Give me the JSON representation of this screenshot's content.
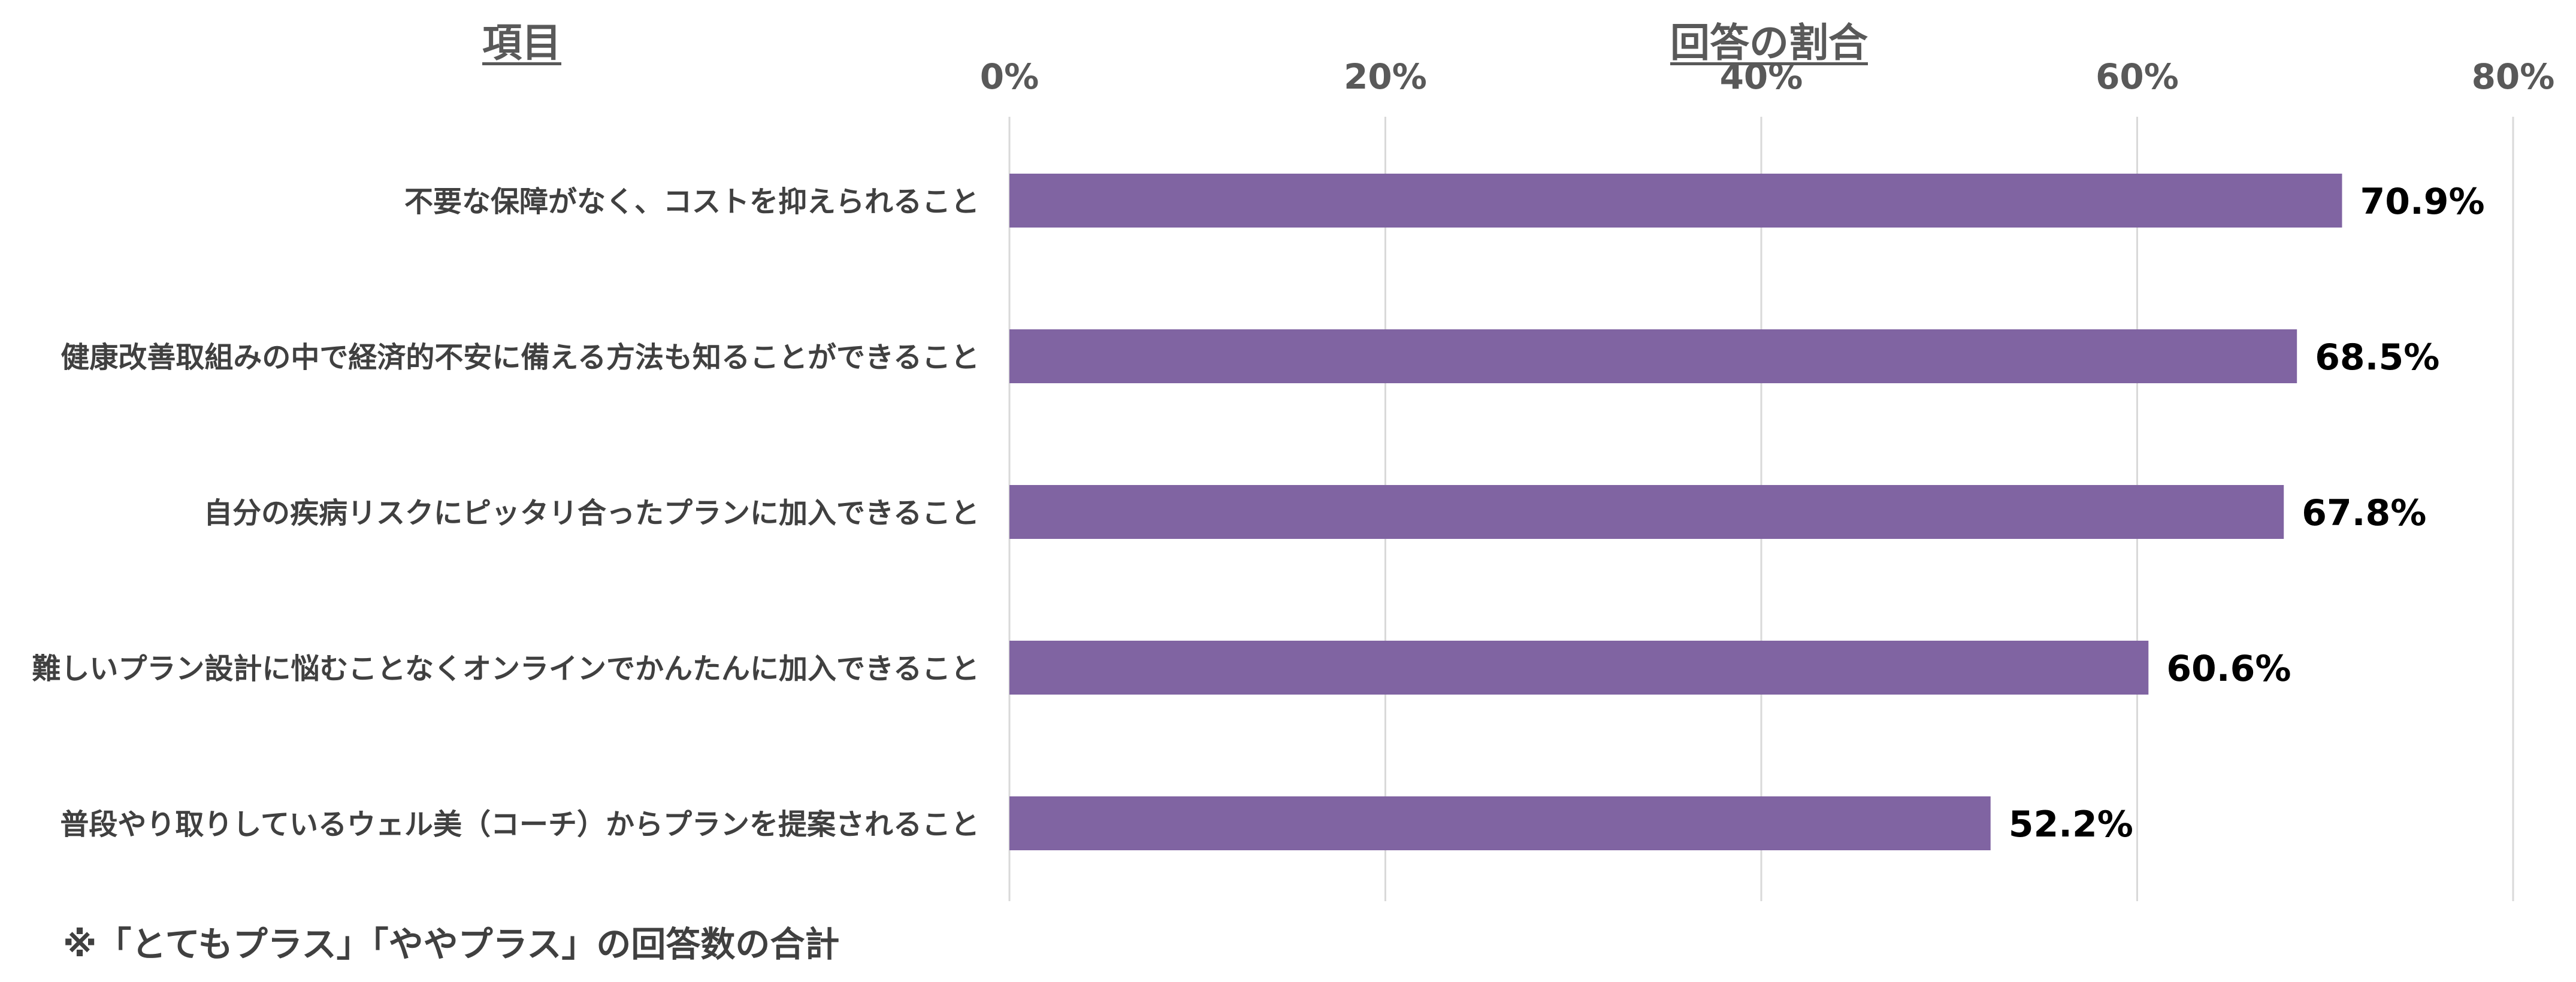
{
  "headers": {
    "item": "項目",
    "ratio": "回答の割合"
  },
  "footnote": "※「とてもプラス」「ややプラス」の回答数の合計",
  "colors": {
    "bar": "#8064A2",
    "grid": "#D9D9D9",
    "axis_text": "#595959",
    "category_text": "#404040",
    "value_text": "#000000"
  },
  "chart_data": {
    "type": "bar",
    "orientation": "horizontal",
    "categories": [
      "不要な保障がなく、コストを抑えられること",
      "健康改善取組みの中で経済的不安に備える方法も知ることができること",
      "自分の疾病リスクにピッタリ合ったプランに加入できること",
      "難しいプラン設計に悩むことなくオンラインでかんたんに加入できること",
      "普段やり取りしているウェル美（コーチ）からプランを提案されること"
    ],
    "values": [
      70.9,
      68.5,
      67.8,
      60.6,
      52.2
    ],
    "value_labels": [
      "70.9%",
      "68.5%",
      "67.8%",
      "60.6%",
      "52.2%"
    ],
    "xlim": [
      0,
      80
    ],
    "ticks": [
      0,
      20,
      40,
      60,
      80
    ],
    "tick_labels": [
      "0%",
      "20%",
      "40%",
      "60%",
      "80%"
    ],
    "axis_position": "top",
    "grid": true,
    "legend": "none"
  }
}
